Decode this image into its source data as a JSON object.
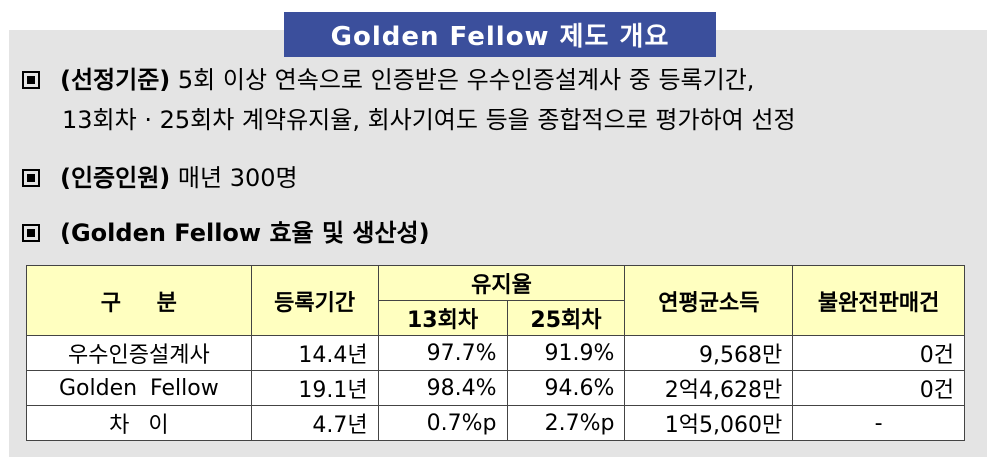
{
  "title": "Golden Fellow 제도 개요",
  "sections": {
    "selection": {
      "heading": "(선정기준)",
      "line1": "5회 이상 연속으로 인증받은 우수인증설계사 중 등록기간,",
      "line2": "13회차 · 25회차 계약유지율, 회사기여도 등을 종합적으로 평가하여 선정"
    },
    "certified": {
      "heading": "(인증인원)",
      "text": "매년 300명"
    },
    "efficiency": {
      "heading": "(Golden Fellow 효율 및 생산성)"
    }
  },
  "table": {
    "headers": {
      "category": "구 분",
      "period": "등록기간",
      "retention": "유지율",
      "r13": "13회차",
      "r25": "25회차",
      "income": "연평균소득",
      "incomplete": "불완전판매건"
    },
    "rows": [
      {
        "category": "우수인증설계사",
        "period": "14.4년",
        "r13": "97.7%",
        "r25": "91.9%",
        "income": "9,568만",
        "incomplete": "0건"
      },
      {
        "category": "Golden Fellow",
        "period": "19.1년",
        "r13": "98.4%",
        "r25": "94.6%",
        "income": "2억4,628만",
        "incomplete": "0건"
      },
      {
        "category": "차 이",
        "period": "4.7년",
        "r13": "0.7%p",
        "r25": "2.7%p",
        "income": "1억5,060만",
        "incomplete": "-"
      }
    ]
  }
}
